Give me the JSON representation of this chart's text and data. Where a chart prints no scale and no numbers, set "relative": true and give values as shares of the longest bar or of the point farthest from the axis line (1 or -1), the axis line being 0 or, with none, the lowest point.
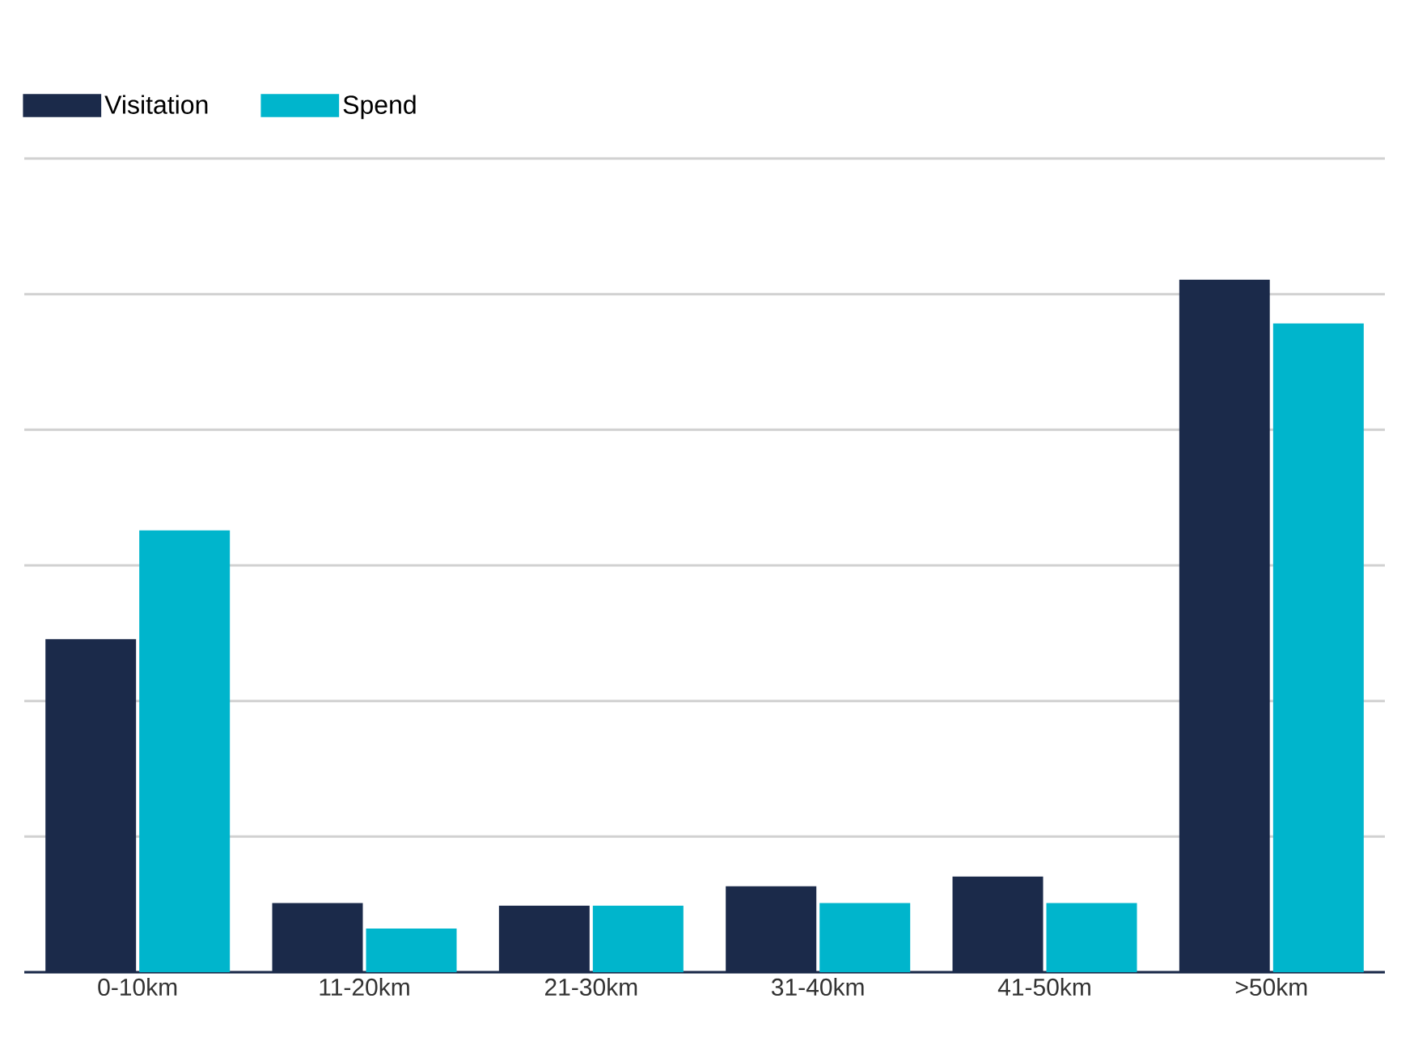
{
  "chart_data": {
    "type": "bar",
    "relative": true,
    "categories": [
      "0-10km",
      "11-20km",
      "21-30km",
      "31-40km",
      "41-50km",
      ">50km"
    ],
    "series": [
      {
        "name": "Visitation",
        "color": "#1b2a4a",
        "values": [
          0.481,
          0.1,
          0.096,
          0.124,
          0.138,
          1
        ]
      },
      {
        "name": "Spend",
        "color": "#00b5cc",
        "values": [
          0.638,
          0.063,
          0.096,
          0.1,
          0.1,
          0.937
        ]
      }
    ],
    "grid": "y",
    "legend": "top left"
  }
}
